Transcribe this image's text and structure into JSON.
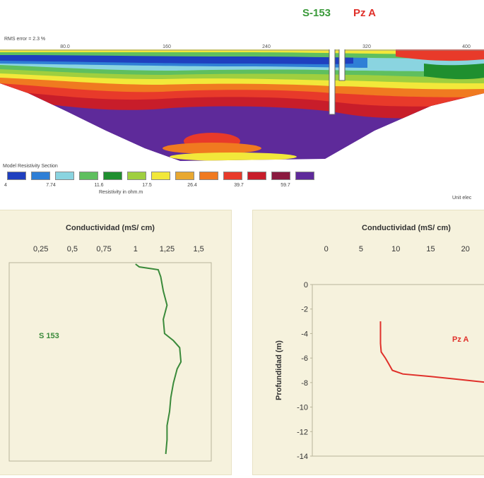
{
  "header": {
    "well_left_label": "S-153",
    "well_right_label": "Pz A",
    "well_left_color": "#3a9a3a",
    "well_right_color": "#e0302a",
    "rms_text": "RMS error = 2.3 %",
    "distance_ticks": [
      "80.0",
      "160",
      "240",
      "320",
      "400"
    ]
  },
  "legend": {
    "title": "Model Resistivity Section",
    "colors": [
      "#1f3fbf",
      "#2f7fd6",
      "#8ad4e0",
      "#5fbf5f",
      "#1f8f2f",
      "#9fcf3f",
      "#f2e83a",
      "#e8a830",
      "#f07a20",
      "#e83a2a",
      "#c81d2a",
      "#8a1a3f",
      "#5e2a9a"
    ],
    "values": [
      "4",
      "7.74",
      "11.6",
      "17.5",
      "26.4",
      "39.7",
      "59.7"
    ],
    "xlabel": "Resistivity in ohm.m",
    "unit_label": "Unit elec"
  },
  "chart_data": [
    {
      "type": "line",
      "title": "Conductividad (mS/ cm)",
      "xlabel": "Conductividad (mS/ cm)",
      "ylabel": "",
      "xlim": [
        0,
        1.6
      ],
      "ylim": [
        -14,
        0
      ],
      "x_ticks": [
        "0,25",
        "0,5",
        "0,75",
        "1",
        "1,25",
        "1,5"
      ],
      "series": [
        {
          "name": "S 153",
          "color": "#3a8a3a",
          "x": [
            1.0,
            1.03,
            1.18,
            1.2,
            1.22,
            1.25,
            1.22,
            1.23,
            1.3,
            1.35,
            1.36,
            1.33,
            1.3,
            1.28,
            1.27,
            1.25,
            1.25,
            1.24
          ],
          "y": [
            -0.1,
            -0.3,
            -0.5,
            -1.0,
            -2.0,
            -3.0,
            -4.0,
            -5.0,
            -5.5,
            -6.0,
            -7.0,
            -7.5,
            -8.5,
            -9.5,
            -10.5,
            -11.5,
            -12.5,
            -13.5
          ]
        }
      ]
    },
    {
      "type": "line",
      "title": "Conductividad (mS/ cm)",
      "xlabel": "Conductividad (mS/ cm)",
      "ylabel": "Profundidad (m)",
      "xlim": [
        -2,
        25
      ],
      "ylim": [
        -14,
        0
      ],
      "x_ticks": [
        "0",
        "5",
        "10",
        "15",
        "20"
      ],
      "y_ticks": [
        "0",
        "-2",
        "-4",
        "-6",
        "-8",
        "-10",
        "-12",
        "-14"
      ],
      "series": [
        {
          "name": "Pz A",
          "color": "#e0302a",
          "x": [
            7.8,
            7.8,
            7.9,
            8.5,
            9.0,
            9.5,
            11.0,
            15.0,
            20.0,
            25.0
          ],
          "y": [
            -3.0,
            -4.8,
            -5.5,
            -6.0,
            -6.5,
            -7.0,
            -7.3,
            -7.5,
            -7.8,
            -8.1
          ]
        }
      ]
    }
  ]
}
